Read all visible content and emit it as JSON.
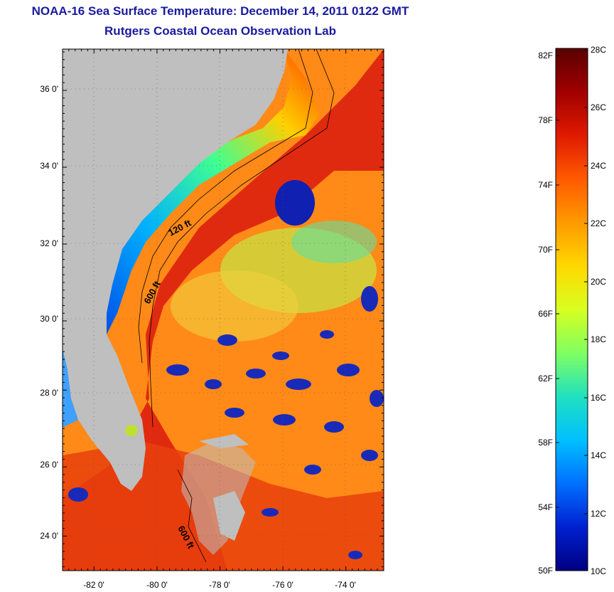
{
  "title": {
    "line1": "NOAA-16 Sea Surface Temperature:  December 14, 2011 0122 GMT",
    "line2": "Rutgers Coastal Ocean Observation Lab"
  },
  "map": {
    "lat_labels": [
      "36 0'",
      "34 0'",
      "32 0'",
      "30 0'",
      "28 0'",
      "26 0'",
      "24 0'"
    ],
    "lon_labels": [
      "-82 0'",
      "-80 0'",
      "-78 0'",
      "-76 0'",
      "-74 0'"
    ],
    "contour_labels": [
      "120 ft",
      "600 ft",
      "600 ft"
    ]
  },
  "colorbar": {
    "fahrenheit_labels": [
      "82F",
      "78F",
      "74F",
      "70F",
      "66F",
      "62F",
      "58F",
      "54F",
      "50F"
    ],
    "celsius_labels": [
      "28C",
      "26C",
      "24C",
      "22C",
      "20C",
      "18C",
      "16C",
      "14C",
      "12C",
      "10C"
    ],
    "colors": [
      "#5a0000",
      "#a00000",
      "#e01a00",
      "#ff5a00",
      "#ff9a00",
      "#ffd800",
      "#d8ff20",
      "#80ff60",
      "#20e0c0",
      "#00c0ff",
      "#0070ff",
      "#0020d0",
      "#000080"
    ]
  },
  "colors": {
    "land": "#bfbfbf",
    "ocean_warm": "#e83010",
    "ocean_mid": "#ff9a20",
    "ocean_cool": "#20a0ff",
    "cold_patch": "#1020b0",
    "title": "#1a1aa0"
  }
}
